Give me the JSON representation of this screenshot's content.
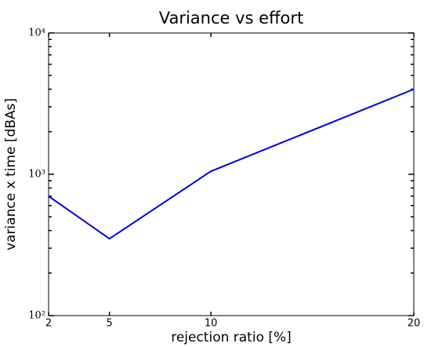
{
  "chart_data": {
    "type": "line",
    "title": "Variance vs effort",
    "xlabel": "rejection ratio [%]",
    "ylabel": "variance x time [dBAs]",
    "x": [
      2,
      5,
      10,
      20
    ],
    "series": [
      {
        "color": "#0000dd",
        "values": [
          700,
          350,
          1050,
          4000
        ]
      }
    ],
    "xlim": [
      2,
      20
    ],
    "xticks": [
      2,
      5,
      10,
      20
    ],
    "ylim": [
      100,
      10000
    ],
    "yscale": "log",
    "yticks": [
      {
        "value": 100,
        "label": "10²"
      },
      {
        "value": 1000,
        "label": "10³"
      },
      {
        "value": 10000,
        "label": "10⁴"
      }
    ],
    "yminorticks": [
      200,
      300,
      400,
      500,
      600,
      700,
      800,
      900,
      2000,
      3000,
      4000,
      5000,
      6000,
      7000,
      8000,
      9000
    ]
  }
}
